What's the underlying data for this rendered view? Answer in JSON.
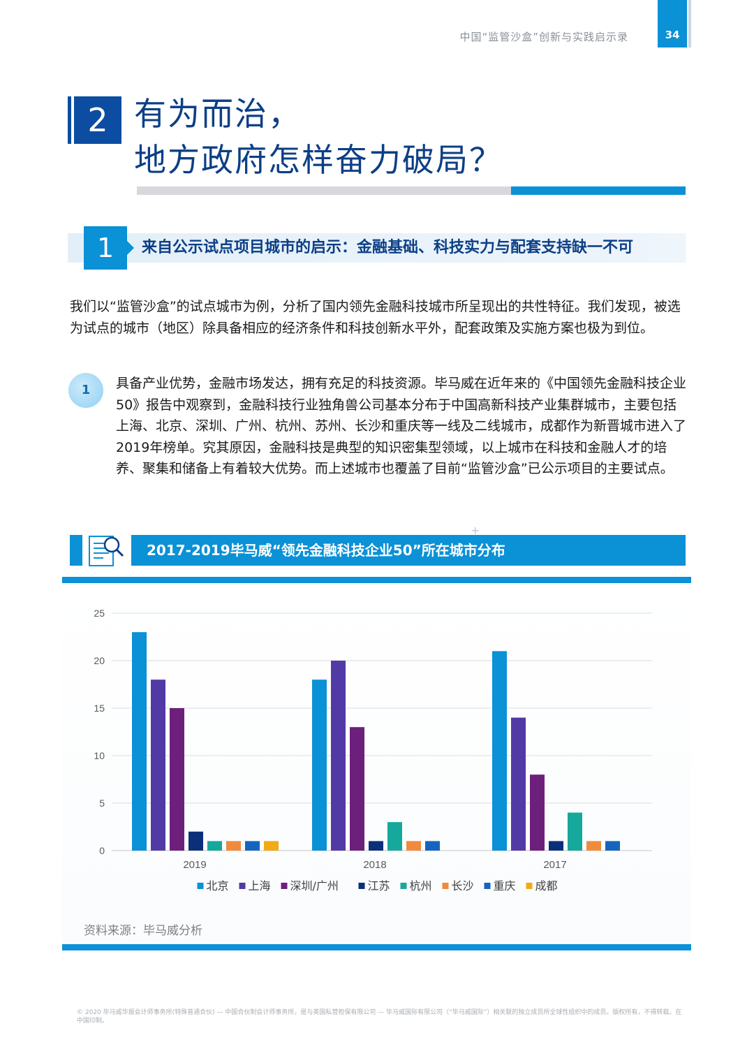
{
  "header": {
    "doc_title": "中国“监管沙盒”创新与实践启示录",
    "page_number": "34"
  },
  "section": {
    "number": "2",
    "title_line1": "有为而治，",
    "title_line2": "地方政府怎样奋力破局？"
  },
  "subsection": {
    "number": "1",
    "title": "来自公示试点项目城市的启示：金融基础、科技实力与配套支持缺一不可"
  },
  "intro_paragraph": "我们以“监管沙盒”的试点城市为例，分析了国内领先金融科技城市所呈现出的共性特征。我们发现，被选为试点的城市（地区）除具备相应的经济条件和科技创新水平外，配套政策及实施方案也极为到位。",
  "point": {
    "number": "1",
    "text": "具备产业优势，金融市场发达，拥有充足的科技资源。毕马威在近年来的《中国领先金融科技企业50》报告中观察到，金融科技行业独角兽公司基本分布于中国高新科技产业集群城市，主要包括上海、北京、深圳、广州、杭州、苏州、长沙和重庆等一线及二线城市，成都作为新晋城市进入了2019年榜单。究其原因，金融科技是典型的知识密集型领域，以上城市在科技和金融人才的培养、聚集和储备上有着较大优势。而上述城市也覆盖了目前“监管沙盒”已公示项目的主要试点。"
  },
  "chart_section": {
    "title": "2017-2019毕马威“领先金融科技企业50”所在城市分布",
    "icon": "document-magnifier-icon",
    "source": "资料来源：毕马威分析"
  },
  "chart_data": {
    "type": "bar",
    "categories": [
      "2019",
      "2018",
      "2017"
    ],
    "ylim": [
      0,
      25
    ],
    "yticks": [
      0,
      5,
      10,
      15,
      20,
      25
    ],
    "grid": true,
    "legend": "bottom",
    "series": [
      {
        "name": "北京",
        "color": "#0a91d6",
        "values": [
          23,
          18,
          21
        ]
      },
      {
        "name": "上海",
        "color": "#523aa6",
        "values": [
          18,
          20,
          14
        ]
      },
      {
        "name": "深圳/广州",
        "color": "#6d1f7c",
        "values": [
          15,
          13,
          8
        ]
      },
      {
        "name": "江苏",
        "color": "#0c2f7a",
        "values": [
          2,
          1,
          1
        ]
      },
      {
        "name": "杭州",
        "color": "#16a89b",
        "values": [
          1,
          3,
          4
        ]
      },
      {
        "name": "长沙",
        "color": "#f08a3c",
        "values": [
          1,
          1,
          1
        ]
      },
      {
        "name": "重庆",
        "color": "#1565c0",
        "values": [
          1,
          1,
          1
        ]
      },
      {
        "name": "成都",
        "color": "#f2ab13",
        "values": [
          1,
          0,
          0
        ]
      }
    ]
  },
  "footer": {
    "text": "© 2020 毕马威华振会计师事务所(特殊普通合伙) — 中国合伙制会计师事务所，是与英国私营担保有限公司 — 毕马威国际有限公司（“毕马威国际”）相关联的独立成员所全球性组织中的成员。版权所有，不得转载。在中国印制。"
  }
}
